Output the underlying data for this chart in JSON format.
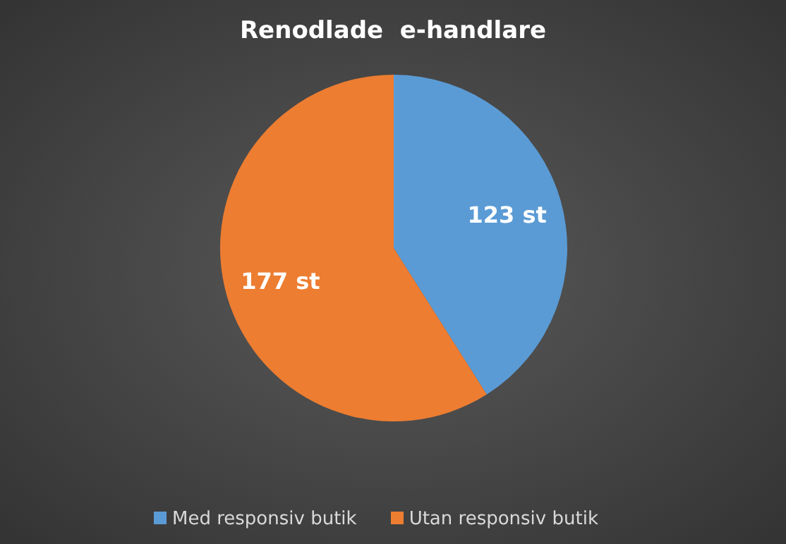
{
  "chart_data": {
    "type": "pie",
    "title": "Renodlade  e-handlare",
    "categories": [
      "Med responsiv butik",
      "Utan responsiv butik"
    ],
    "values": [
      123,
      177
    ],
    "colors": [
      "#5b9bd5",
      "#ed7d31"
    ],
    "value_labels": [
      "123 st",
      "177 st"
    ],
    "legend": "bottom"
  }
}
